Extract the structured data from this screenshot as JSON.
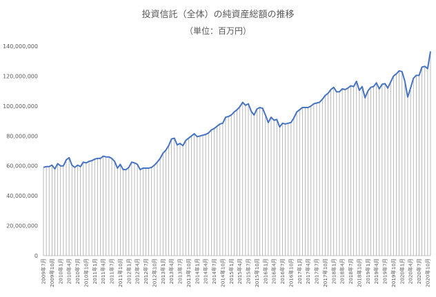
{
  "chart_data": {
    "type": "area",
    "title": "投資信託（全体）の純資産総額の推移",
    "subtitle": "（単位：百万円）",
    "xlabel": "",
    "ylabel": "",
    "ylim": [
      0,
      140000000
    ],
    "yticks": [
      0,
      20000000,
      40000000,
      60000000,
      80000000,
      100000000,
      120000000,
      140000000
    ],
    "ytick_labels": [
      "0",
      "20,000,000",
      "40,000,000",
      "60,000,000",
      "80,000,000",
      "100,000,000",
      "120,000,000",
      "140,000,000"
    ],
    "grid": false,
    "legend": "none",
    "line_color": "#4472C4",
    "fill_color": "#a6a6a6",
    "x_tick_labels": [
      "2009年7月",
      "2009年10月",
      "2010年1月",
      "2010年4月",
      "2010年7月",
      "2010年10月",
      "2011年1月",
      "2011年4月",
      "2011年7月",
      "2011年10月",
      "2012年1月",
      "2012年4月",
      "2012年7月",
      "2012年10月",
      "2013年1月",
      "2013年4月",
      "2013年7月",
      "2013年10月",
      "2014年1月",
      "2014年4月",
      "2014年7月",
      "2014年10月",
      "2015年1月",
      "2015年4月",
      "2015年7月",
      "2015年10月",
      "2016年1月",
      "2016年4月",
      "2016年7月",
      "2016年10月",
      "2017年1月",
      "2017年4月",
      "2017年7月",
      "2017年10月",
      "2018年1月",
      "2018年4月",
      "2018年7月",
      "2018年10月",
      "2019年1月",
      "2019年4月",
      "2019年7月",
      "2019年10月",
      "2020年1月",
      "2020年4月",
      "2020年7月",
      "2020年10月"
    ],
    "values": [
      59000000,
      59500000,
      59500000,
      60500000,
      58000000,
      61500000,
      60000000,
      60000000,
      64000000,
      65500000,
      60500000,
      59000000,
      60500000,
      59500000,
      62500000,
      62000000,
      63000000,
      63500000,
      64500000,
      65000000,
      65000000,
      66500000,
      66000000,
      66000000,
      65000000,
      63000000,
      58500000,
      61000000,
      57500000,
      57500000,
      59000000,
      62500000,
      62000000,
      61000000,
      57500000,
      58500000,
      58500000,
      58500000,
      59000000,
      60500000,
      62500000,
      65000000,
      68500000,
      70500000,
      73500000,
      78000000,
      78500000,
      74000000,
      75000000,
      73500000,
      77000000,
      78500000,
      80000000,
      81500000,
      79500000,
      80000000,
      80500000,
      81000000,
      82000000,
      84000000,
      85000000,
      86500000,
      88000000,
      88500000,
      92500000,
      93000000,
      94000000,
      96000000,
      97500000,
      99500000,
      102500000,
      100500000,
      101500000,
      96500000,
      94000000,
      98000000,
      99000000,
      98500000,
      94000000,
      89000000,
      92500000,
      90500000,
      91000000,
      86000000,
      88500000,
      88000000,
      88500000,
      89000000,
      92000000,
      96000000,
      97500000,
      99000000,
      99000000,
      99000000,
      100000000,
      101500000,
      102000000,
      102500000,
      104500000,
      107000000,
      108500000,
      111000000,
      112500000,
      109500000,
      109500000,
      111500000,
      111000000,
      112000000,
      113500000,
      113000000,
      116500000,
      110500000,
      113000000,
      105500000,
      110000000,
      112500000,
      113000000,
      115500000,
      111500000,
      114500000,
      115000000,
      112000000,
      116000000,
      120000000,
      121500000,
      123500000,
      123000000,
      116500000,
      106000000,
      112000000,
      118500000,
      120500000,
      120500000,
      126000000,
      126500000,
      125000000,
      136500000
    ]
  }
}
